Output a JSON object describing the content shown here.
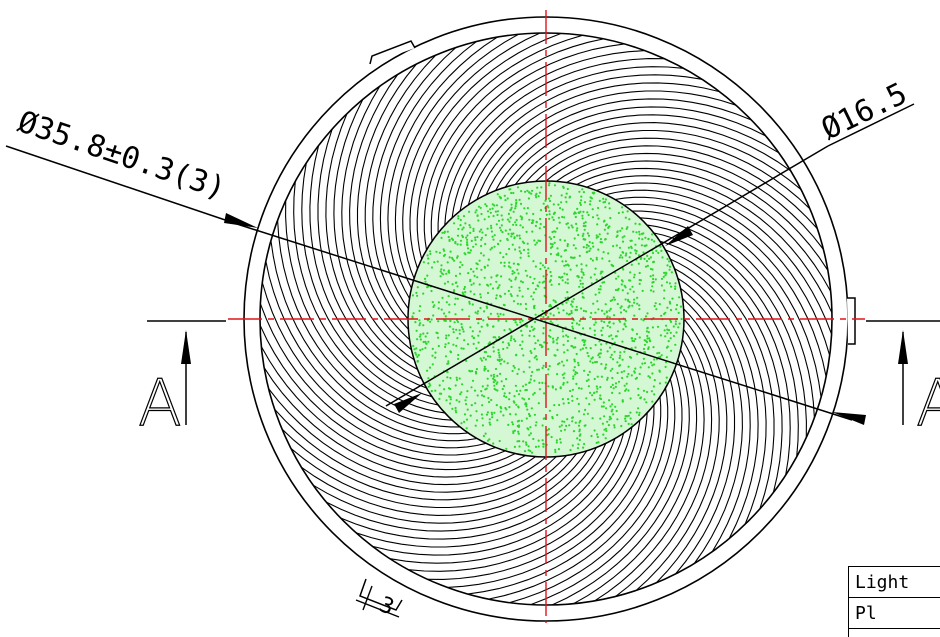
{
  "drawing": {
    "outer_diameter_label": "Ø35.8±0.3(3)",
    "inner_diameter_label": "Ø16.5",
    "tab_dimension_label": "3",
    "section_left_label": "A",
    "section_right_label": "A"
  },
  "colors": {
    "centerline": "#e0141c",
    "fill_dots": "#2dd62d",
    "fill_background": "#d4f7d4",
    "lines": "#000000"
  },
  "legend": {
    "row1": "Light",
    "row2": "Pl"
  }
}
